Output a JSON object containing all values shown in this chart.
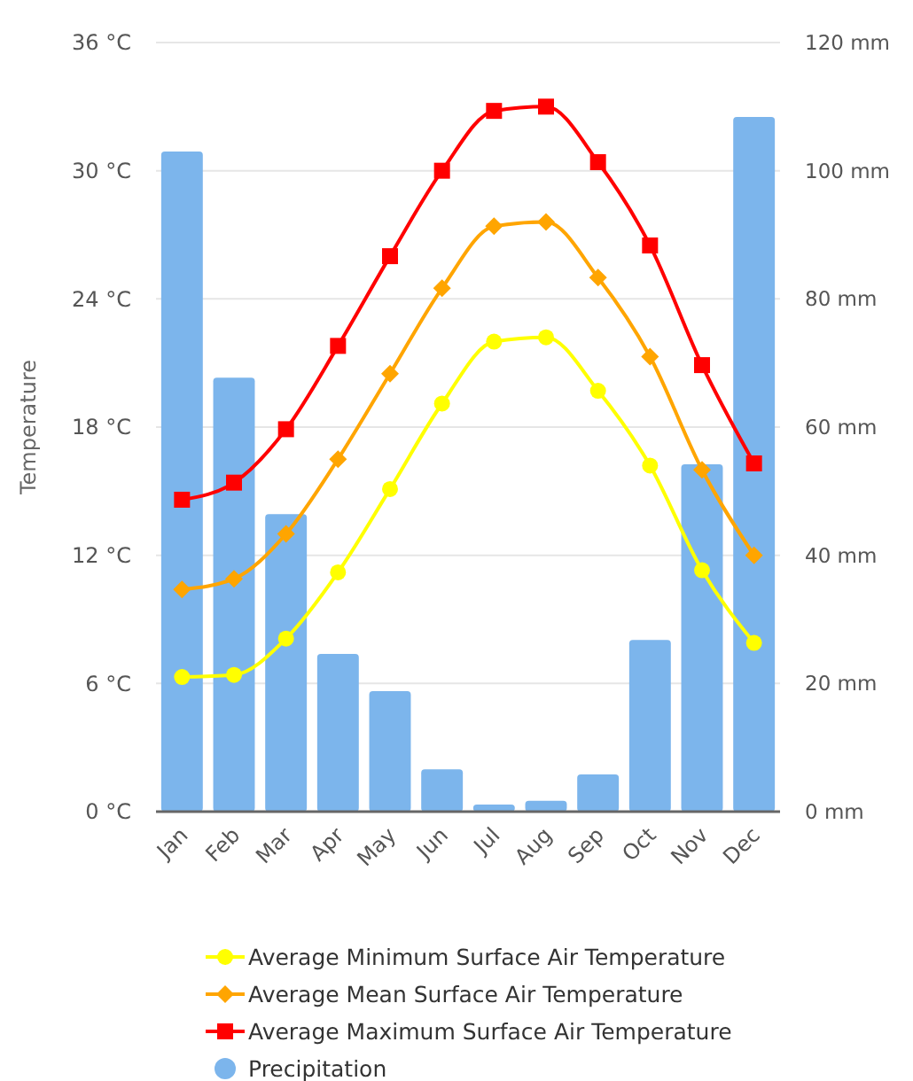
{
  "chart_data": {
    "type": "bar",
    "ylabel": "Temperature",
    "categories": [
      "Jan",
      "Feb",
      "Mar",
      "Apr",
      "May",
      "Jun",
      "Jul",
      "Aug",
      "Sep",
      "Oct",
      "Nov",
      "Dec"
    ],
    "series": [
      {
        "name": "Average Minimum Surface Air Temperature",
        "type": "line",
        "marker": "circle",
        "color": "#ffff00",
        "values": [
          6.3,
          6.4,
          8.1,
          11.2,
          15.1,
          19.1,
          22.0,
          22.2,
          19.7,
          16.2,
          11.3,
          7.9
        ]
      },
      {
        "name": "Average Mean Surface Air Temperature",
        "type": "line",
        "marker": "diamond",
        "color": "#ffa500",
        "values": [
          10.4,
          10.9,
          13.0,
          16.5,
          20.5,
          24.5,
          27.4,
          27.6,
          25.0,
          21.3,
          16.0,
          12.0
        ]
      },
      {
        "name": "Average Maximum Surface Air Temperature",
        "type": "line",
        "marker": "square",
        "color": "#ff0000",
        "values": [
          14.6,
          15.4,
          17.9,
          21.8,
          26.0,
          30.0,
          32.8,
          33.0,
          30.4,
          26.5,
          20.9,
          16.3
        ]
      },
      {
        "name": "Precipitation",
        "axis": "y2",
        "color": "#7cb5ec",
        "values": [
          103,
          67.7,
          46.4,
          24.6,
          18.8,
          6.6,
          1.1,
          1.7,
          5.8,
          26.8,
          54.2,
          108.4
        ]
      }
    ],
    "ylim": [
      0,
      36
    ],
    "yticks": [
      {
        "value": 0,
        "label": "0 °C"
      },
      {
        "value": 6,
        "label": "6 °C"
      },
      {
        "value": 12,
        "label": "12 °C"
      },
      {
        "value": 18,
        "label": "18 °C"
      },
      {
        "value": 24,
        "label": "24 °C"
      },
      {
        "value": 30,
        "label": "30 °C"
      },
      {
        "value": 36,
        "label": "36 °C"
      }
    ],
    "y2lim": [
      0,
      120
    ],
    "y2ticks": [
      {
        "value": 0,
        "label": "0 mm"
      },
      {
        "value": 20,
        "label": "20 mm"
      },
      {
        "value": 40,
        "label": "40 mm"
      },
      {
        "value": 60,
        "label": "60 mm"
      },
      {
        "value": 80,
        "label": "80 mm"
      },
      {
        "value": 100,
        "label": "100 mm"
      },
      {
        "value": 120,
        "label": "120 mm"
      }
    ],
    "grid": "y",
    "legend": "bottom"
  }
}
